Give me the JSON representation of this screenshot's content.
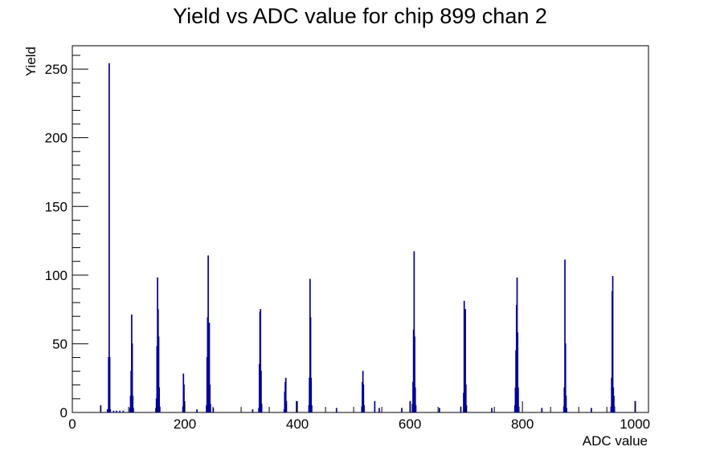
{
  "chart_data": {
    "type": "bar",
    "title": "Yield vs ADC value for chip 899 chan 2",
    "xlabel": "ADC value",
    "ylabel": "Yield",
    "xlim": [
      0,
      1024
    ],
    "ylim": [
      0,
      267
    ],
    "x_ticks": [
      0,
      200,
      400,
      600,
      800,
      1000
    ],
    "y_ticks": [
      0,
      50,
      100,
      150,
      200,
      250
    ],
    "grid": false,
    "legend": "none",
    "color": "#000099",
    "bins": [
      {
        "x": 50,
        "y": 5
      },
      {
        "x": 62,
        "y": 2
      },
      {
        "x": 64,
        "y": 40
      },
      {
        "x": 65,
        "y": 254
      },
      {
        "x": 66,
        "y": 40
      },
      {
        "x": 67,
        "y": 2
      },
      {
        "x": 73,
        "y": 1
      },
      {
        "x": 78,
        "y": 1
      },
      {
        "x": 84,
        "y": 1
      },
      {
        "x": 90,
        "y": 1
      },
      {
        "x": 102,
        "y": 3
      },
      {
        "x": 103,
        "y": 12
      },
      {
        "x": 104,
        "y": 30
      },
      {
        "x": 105,
        "y": 71
      },
      {
        "x": 106,
        "y": 50
      },
      {
        "x": 107,
        "y": 12
      },
      {
        "x": 108,
        "y": 3
      },
      {
        "x": 148,
        "y": 3
      },
      {
        "x": 149,
        "y": 10
      },
      {
        "x": 150,
        "y": 48
      },
      {
        "x": 151,
        "y": 98
      },
      {
        "x": 152,
        "y": 75
      },
      {
        "x": 153,
        "y": 55
      },
      {
        "x": 154,
        "y": 18
      },
      {
        "x": 155,
        "y": 4
      },
      {
        "x": 196,
        "y": 4
      },
      {
        "x": 197,
        "y": 28
      },
      {
        "x": 198,
        "y": 20
      },
      {
        "x": 199,
        "y": 6
      },
      {
        "x": 221,
        "y": 2
      },
      {
        "x": 238,
        "y": 5
      },
      {
        "x": 239,
        "y": 40
      },
      {
        "x": 240,
        "y": 69
      },
      {
        "x": 241,
        "y": 114
      },
      {
        "x": 242,
        "y": 50
      },
      {
        "x": 243,
        "y": 65
      },
      {
        "x": 244,
        "y": 20
      },
      {
        "x": 245,
        "y": 6
      },
      {
        "x": 250,
        "y": 3
      },
      {
        "x": 320,
        "y": 2
      },
      {
        "x": 331,
        "y": 3
      },
      {
        "x": 332,
        "y": 35
      },
      {
        "x": 333,
        "y": 73
      },
      {
        "x": 334,
        "y": 75
      },
      {
        "x": 335,
        "y": 30
      },
      {
        "x": 336,
        "y": 6
      },
      {
        "x": 376,
        "y": 2
      },
      {
        "x": 377,
        "y": 15
      },
      {
        "x": 378,
        "y": 22
      },
      {
        "x": 379,
        "y": 25
      },
      {
        "x": 380,
        "y": 8
      },
      {
        "x": 398,
        "y": 8
      },
      {
        "x": 420,
        "y": 5
      },
      {
        "x": 421,
        "y": 25
      },
      {
        "x": 422,
        "y": 97
      },
      {
        "x": 423,
        "y": 69
      },
      {
        "x": 424,
        "y": 25
      },
      {
        "x": 425,
        "y": 5
      },
      {
        "x": 469,
        "y": 3
      },
      {
        "x": 514,
        "y": 4
      },
      {
        "x": 515,
        "y": 22
      },
      {
        "x": 516,
        "y": 30
      },
      {
        "x": 517,
        "y": 20
      },
      {
        "x": 518,
        "y": 5
      },
      {
        "x": 537,
        "y": 8
      },
      {
        "x": 545,
        "y": 3
      },
      {
        "x": 585,
        "y": 3
      },
      {
        "x": 600,
        "y": 8
      },
      {
        "x": 604,
        "y": 6
      },
      {
        "x": 605,
        "y": 22
      },
      {
        "x": 606,
        "y": 60
      },
      {
        "x": 607,
        "y": 117
      },
      {
        "x": 608,
        "y": 55
      },
      {
        "x": 609,
        "y": 18
      },
      {
        "x": 610,
        "y": 5
      },
      {
        "x": 652,
        "y": 3
      },
      {
        "x": 690,
        "y": 4
      },
      {
        "x": 695,
        "y": 14
      },
      {
        "x": 696,
        "y": 81
      },
      {
        "x": 697,
        "y": 12
      },
      {
        "x": 698,
        "y": 75
      },
      {
        "x": 699,
        "y": 20
      },
      {
        "x": 700,
        "y": 5
      },
      {
        "x": 745,
        "y": 3
      },
      {
        "x": 786,
        "y": 5
      },
      {
        "x": 787,
        "y": 18
      },
      {
        "x": 788,
        "y": 45
      },
      {
        "x": 789,
        "y": 78
      },
      {
        "x": 790,
        "y": 98
      },
      {
        "x": 791,
        "y": 58
      },
      {
        "x": 792,
        "y": 18
      },
      {
        "x": 793,
        "y": 4
      },
      {
        "x": 834,
        "y": 3
      },
      {
        "x": 873,
        "y": 4
      },
      {
        "x": 874,
        "y": 18
      },
      {
        "x": 875,
        "y": 111
      },
      {
        "x": 876,
        "y": 50
      },
      {
        "x": 877,
        "y": 12
      },
      {
        "x": 878,
        "y": 3
      },
      {
        "x": 922,
        "y": 3
      },
      {
        "x": 957,
        "y": 4
      },
      {
        "x": 958,
        "y": 25
      },
      {
        "x": 959,
        "y": 88
      },
      {
        "x": 960,
        "y": 99
      },
      {
        "x": 961,
        "y": 18
      },
      {
        "x": 962,
        "y": 12
      },
      {
        "x": 963,
        "y": 4
      },
      {
        "x": 1000,
        "y": 8
      }
    ]
  }
}
